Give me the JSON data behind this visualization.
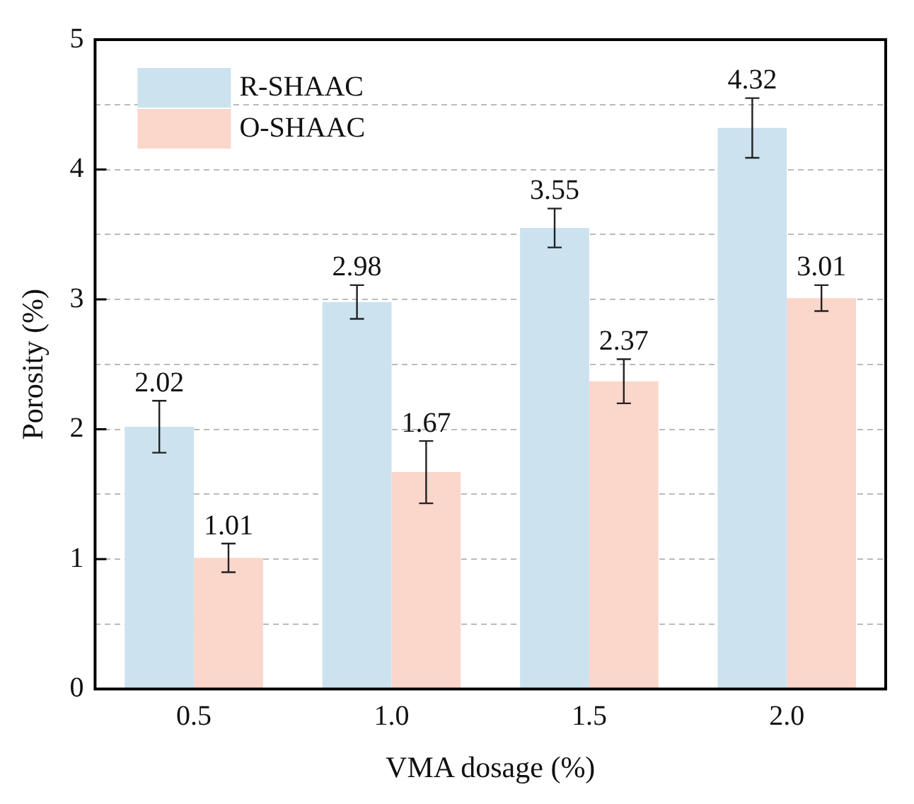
{
  "chart_data": {
    "type": "bar",
    "xlabel": "VMA dosage (%)",
    "ylabel": "Porosity (%)",
    "categories": [
      "0.5",
      "1.0",
      "1.5",
      "2.0"
    ],
    "series": [
      {
        "name": "R-SHAAC",
        "color": "#cce2ef",
        "values": [
          2.02,
          2.98,
          3.55,
          4.32
        ],
        "errors": [
          0.2,
          0.13,
          0.15,
          0.23
        ]
      },
      {
        "name": "O-SHAAC",
        "color": "#fbd6cb",
        "values": [
          1.01,
          1.67,
          2.37,
          3.01
        ],
        "errors": [
          0.11,
          0.24,
          0.17,
          0.1
        ]
      }
    ],
    "ylim": [
      0,
      5
    ],
    "yticks": [
      0,
      {
        "value": 0.5,
        "label": null
      },
      1,
      {
        "value": 1.5,
        "label": null
      },
      2,
      {
        "value": 2.5,
        "label": null
      },
      3,
      {
        "value": 3.5,
        "label": null
      },
      4,
      {
        "value": 4.5,
        "label": null
      },
      5
    ],
    "grid": "y",
    "legend": "top left",
    "data_labels": true
  }
}
